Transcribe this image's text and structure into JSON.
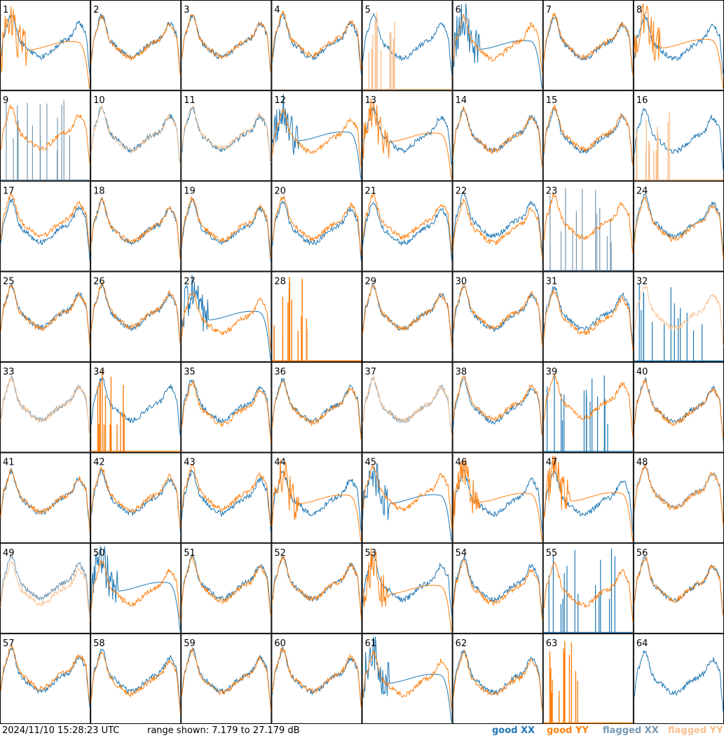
{
  "colors": {
    "good_xx": "#1f77b4",
    "good_yy": "#ff7f0e",
    "flagged_xx": "#7899b3",
    "flagged_yy": "#f8c090"
  },
  "footer": {
    "timestamp": "2024/11/10 15:28:23 UTC",
    "range_label": "range shown: 7.179 to 27.179 dB",
    "legend": [
      "good XX",
      "good YY",
      "flagged XX",
      "flagged YY"
    ]
  },
  "chart_data": {
    "type": "line",
    "title": "",
    "ylim": [
      7.179,
      27.179
    ],
    "yunit": "dB",
    "grid": "8x8 panels",
    "series_names": [
      "good XX",
      "good YY",
      "flagged XX",
      "flagged YY"
    ],
    "panels": [
      {
        "id": "1",
        "xx": "good",
        "yy": "good",
        "xx_shape": "normal",
        "yy_shape": "droop"
      },
      {
        "id": "2",
        "xx": "good",
        "yy": "good",
        "xx_shape": "normal",
        "yy_shape": "normal"
      },
      {
        "id": "3",
        "xx": "good",
        "yy": "good",
        "xx_shape": "normal",
        "yy_shape": "normal"
      },
      {
        "id": "4",
        "xx": "good",
        "yy": "good",
        "xx_shape": "normal",
        "yy_shape": "normal"
      },
      {
        "id": "5",
        "xx": "good",
        "yy": "flagged",
        "xx_shape": "normal",
        "yy_shape": "spikes"
      },
      {
        "id": "6",
        "xx": "good",
        "yy": "good",
        "xx_shape": "droop",
        "yy_shape": "normal"
      },
      {
        "id": "7",
        "xx": "good",
        "yy": "good",
        "xx_shape": "normal",
        "yy_shape": "normal"
      },
      {
        "id": "8",
        "xx": "good",
        "yy": "good",
        "xx_shape": "normal",
        "yy_shape": "droop"
      },
      {
        "id": "9",
        "xx": "flagged",
        "yy": "good",
        "xx_shape": "spikes",
        "yy_shape": "normal"
      },
      {
        "id": "10",
        "xx": "good",
        "yy": "flagged",
        "xx_shape": "normal",
        "yy_shape": "normal"
      },
      {
        "id": "11",
        "xx": "good",
        "yy": "flagged",
        "xx_shape": "normal",
        "yy_shape": "normal"
      },
      {
        "id": "12",
        "xx": "good",
        "yy": "good",
        "xx_shape": "droop",
        "yy_shape": "normal"
      },
      {
        "id": "13",
        "xx": "good",
        "yy": "good",
        "xx_shape": "normal",
        "yy_shape": "droop"
      },
      {
        "id": "14",
        "xx": "good",
        "yy": "good",
        "xx_shape": "normal",
        "yy_shape": "normal"
      },
      {
        "id": "15",
        "xx": "good",
        "yy": "good",
        "xx_shape": "normal",
        "yy_shape": "normal"
      },
      {
        "id": "16",
        "xx": "good",
        "yy": "flagged",
        "xx_shape": "normal",
        "yy_shape": "spikes"
      },
      {
        "id": "17",
        "xx": "good",
        "yy": "good",
        "xx_shape": "normal",
        "yy_shape": "normal"
      },
      {
        "id": "18",
        "xx": "good",
        "yy": "good",
        "xx_shape": "normal",
        "yy_shape": "normal"
      },
      {
        "id": "19",
        "xx": "good",
        "yy": "good",
        "xx_shape": "normal",
        "yy_shape": "normal"
      },
      {
        "id": "20",
        "xx": "good",
        "yy": "good",
        "xx_shape": "normal",
        "yy_shape": "normal"
      },
      {
        "id": "21",
        "xx": "good",
        "yy": "good",
        "xx_shape": "normal",
        "yy_shape": "normal"
      },
      {
        "id": "22",
        "xx": "good",
        "yy": "good",
        "xx_shape": "normal",
        "yy_shape": "normal"
      },
      {
        "id": "23",
        "xx": "flagged",
        "yy": "good",
        "xx_shape": "spikes",
        "yy_shape": "normal"
      },
      {
        "id": "24",
        "xx": "good",
        "yy": "good",
        "xx_shape": "normal",
        "yy_shape": "normal"
      },
      {
        "id": "25",
        "xx": "good",
        "yy": "good",
        "xx_shape": "normal",
        "yy_shape": "normal"
      },
      {
        "id": "26",
        "xx": "good",
        "yy": "good",
        "xx_shape": "normal",
        "yy_shape": "normal"
      },
      {
        "id": "27",
        "xx": "good",
        "yy": "good",
        "xx_shape": "droop",
        "yy_shape": "normal"
      },
      {
        "id": "28",
        "xx": "good",
        "yy": "good",
        "xx_shape": "none",
        "yy_shape": "spikes"
      },
      {
        "id": "29",
        "xx": "good",
        "yy": "good",
        "xx_shape": "normal",
        "yy_shape": "normal"
      },
      {
        "id": "30",
        "xx": "good",
        "yy": "good",
        "xx_shape": "normal",
        "yy_shape": "normal"
      },
      {
        "id": "31",
        "xx": "good",
        "yy": "good",
        "xx_shape": "normal",
        "yy_shape": "normal"
      },
      {
        "id": "32",
        "xx": "good",
        "yy": "flagged",
        "xx_shape": "spikes",
        "yy_shape": "normal"
      },
      {
        "id": "33",
        "xx": "flagged",
        "yy": "flagged",
        "xx_shape": "normal",
        "yy_shape": "normal"
      },
      {
        "id": "34",
        "xx": "good",
        "yy": "good",
        "xx_shape": "normal",
        "yy_shape": "spikes"
      },
      {
        "id": "35",
        "xx": "good",
        "yy": "good",
        "xx_shape": "normal",
        "yy_shape": "normal"
      },
      {
        "id": "36",
        "xx": "good",
        "yy": "good",
        "xx_shape": "normal",
        "yy_shape": "normal"
      },
      {
        "id": "37",
        "xx": "flagged",
        "yy": "flagged",
        "xx_shape": "normal",
        "yy_shape": "normal"
      },
      {
        "id": "38",
        "xx": "good",
        "yy": "good",
        "xx_shape": "normal",
        "yy_shape": "normal"
      },
      {
        "id": "39",
        "xx": "good",
        "yy": "good",
        "xx_shape": "spikes",
        "yy_shape": "normal"
      },
      {
        "id": "40",
        "xx": "good",
        "yy": "good",
        "xx_shape": "normal",
        "yy_shape": "normal"
      },
      {
        "id": "41",
        "xx": "good",
        "yy": "good",
        "xx_shape": "normal",
        "yy_shape": "normal"
      },
      {
        "id": "42",
        "xx": "good",
        "yy": "good",
        "xx_shape": "normal",
        "yy_shape": "normal"
      },
      {
        "id": "43",
        "xx": "good",
        "yy": "good",
        "xx_shape": "normal",
        "yy_shape": "normal"
      },
      {
        "id": "44",
        "xx": "good",
        "yy": "good",
        "xx_shape": "normal",
        "yy_shape": "droop"
      },
      {
        "id": "45",
        "xx": "good",
        "yy": "good",
        "xx_shape": "droop",
        "yy_shape": "normal"
      },
      {
        "id": "46",
        "xx": "good",
        "yy": "good",
        "xx_shape": "normal",
        "yy_shape": "droop"
      },
      {
        "id": "47",
        "xx": "good",
        "yy": "good",
        "xx_shape": "normal",
        "yy_shape": "droop"
      },
      {
        "id": "48",
        "xx": "flagged",
        "yy": "good",
        "xx_shape": "normal",
        "yy_shape": "normal"
      },
      {
        "id": "49",
        "xx": "flagged",
        "yy": "flagged",
        "xx_shape": "normal",
        "yy_shape": "normal"
      },
      {
        "id": "50",
        "xx": "good",
        "yy": "good",
        "xx_shape": "droop",
        "yy_shape": "normal"
      },
      {
        "id": "51",
        "xx": "good",
        "yy": "good",
        "xx_shape": "normal",
        "yy_shape": "normal"
      },
      {
        "id": "52",
        "xx": "good",
        "yy": "good",
        "xx_shape": "normal",
        "yy_shape": "normal"
      },
      {
        "id": "53",
        "xx": "good",
        "yy": "good",
        "xx_shape": "normal",
        "yy_shape": "droop"
      },
      {
        "id": "54",
        "xx": "good",
        "yy": "good",
        "xx_shape": "normal",
        "yy_shape": "normal"
      },
      {
        "id": "55",
        "xx": "good",
        "yy": "good",
        "xx_shape": "spikes",
        "yy_shape": "normal"
      },
      {
        "id": "56",
        "xx": "good",
        "yy": "good",
        "xx_shape": "normal",
        "yy_shape": "normal"
      },
      {
        "id": "57",
        "xx": "good",
        "yy": "good",
        "xx_shape": "normal",
        "yy_shape": "normal"
      },
      {
        "id": "58",
        "xx": "good",
        "yy": "good",
        "xx_shape": "normal",
        "yy_shape": "normal"
      },
      {
        "id": "59",
        "xx": "good",
        "yy": "good",
        "xx_shape": "normal",
        "yy_shape": "normal"
      },
      {
        "id": "60",
        "xx": "good",
        "yy": "good",
        "xx_shape": "normal",
        "yy_shape": "normal"
      },
      {
        "id": "61",
        "xx": "good",
        "yy": "good",
        "xx_shape": "droop",
        "yy_shape": "normal"
      },
      {
        "id": "62",
        "xx": "good",
        "yy": "good",
        "xx_shape": "normal",
        "yy_shape": "normal"
      },
      {
        "id": "63",
        "xx": "good",
        "yy": "good",
        "xx_shape": "none",
        "yy_shape": "spikes"
      },
      {
        "id": "64",
        "xx": "good",
        "yy": "good",
        "xx_shape": "normal",
        "yy_shape": "none"
      }
    ]
  }
}
